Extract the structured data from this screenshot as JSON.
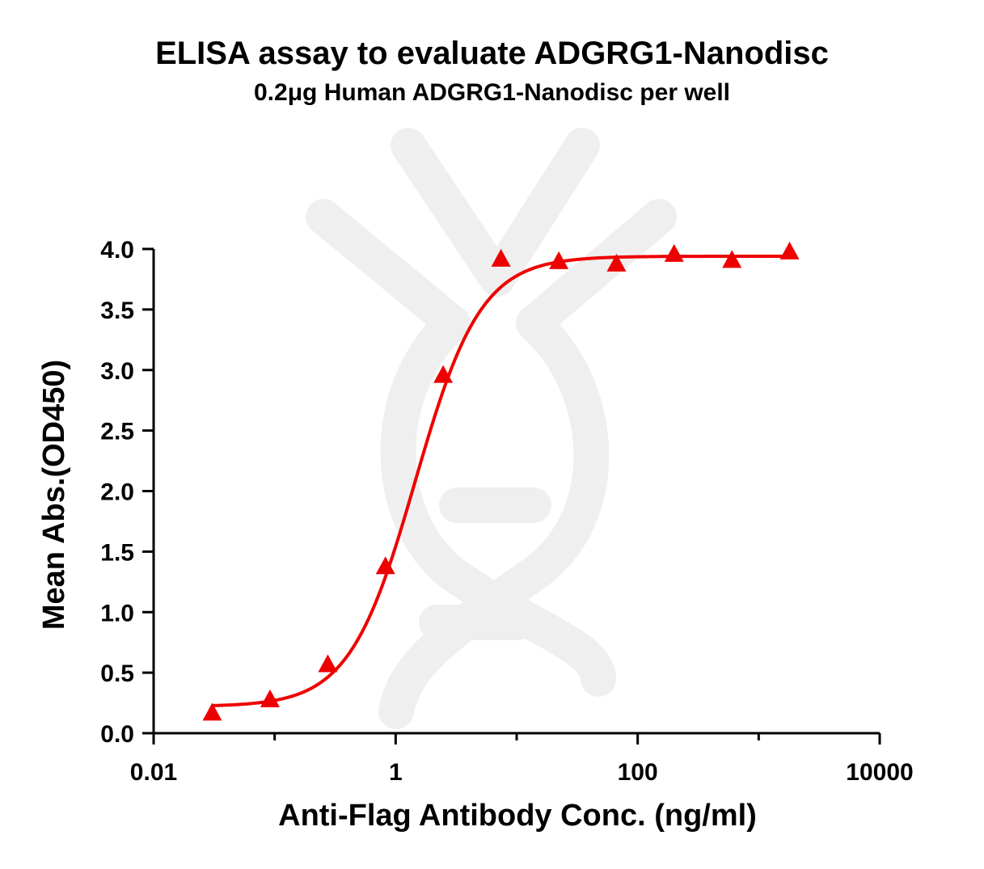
{
  "chart_data": {
    "type": "scatter",
    "title": "ELISA assay to evaluate ADGRG1-Nanodisc",
    "subtitle": "0.2μg Human ADGRG1-Nanodisc per well",
    "xlabel": "Anti-Flag Antibody Conc. (ng/ml)",
    "ylabel": "Mean Abs.(OD450)",
    "x_scale": "log",
    "xlim": [
      0.01,
      10000
    ],
    "ylim": [
      0.0,
      4.0
    ],
    "x_ticks": [
      0.01,
      1,
      100,
      10000
    ],
    "x_tick_labels": [
      "0.01",
      "1",
      "100",
      "10000"
    ],
    "y_ticks": [
      0.0,
      0.5,
      1.0,
      1.5,
      2.0,
      2.5,
      3.0,
      3.5,
      4.0
    ],
    "y_tick_labels": [
      "0.0",
      "0.5",
      "1.0",
      "1.5",
      "2.0",
      "2.5",
      "3.0",
      "3.5",
      "4.0"
    ],
    "grid": false,
    "series": [
      {
        "marker": "triangle",
        "color": "#ee0000",
        "x": [
          0.0305,
          0.0916,
          0.275,
          0.824,
          2.47,
          7.42,
          22.3,
          66.8,
          200,
          601,
          1800
        ],
        "y": [
          0.16,
          0.27,
          0.56,
          1.37,
          2.95,
          3.91,
          3.89,
          3.87,
          3.95,
          3.9,
          3.97
        ]
      }
    ],
    "fit": {
      "type": "4PL",
      "color": "#ee0000",
      "bottom": 0.22,
      "top": 3.94,
      "ec50": 1.45,
      "hill": 1.6
    }
  }
}
